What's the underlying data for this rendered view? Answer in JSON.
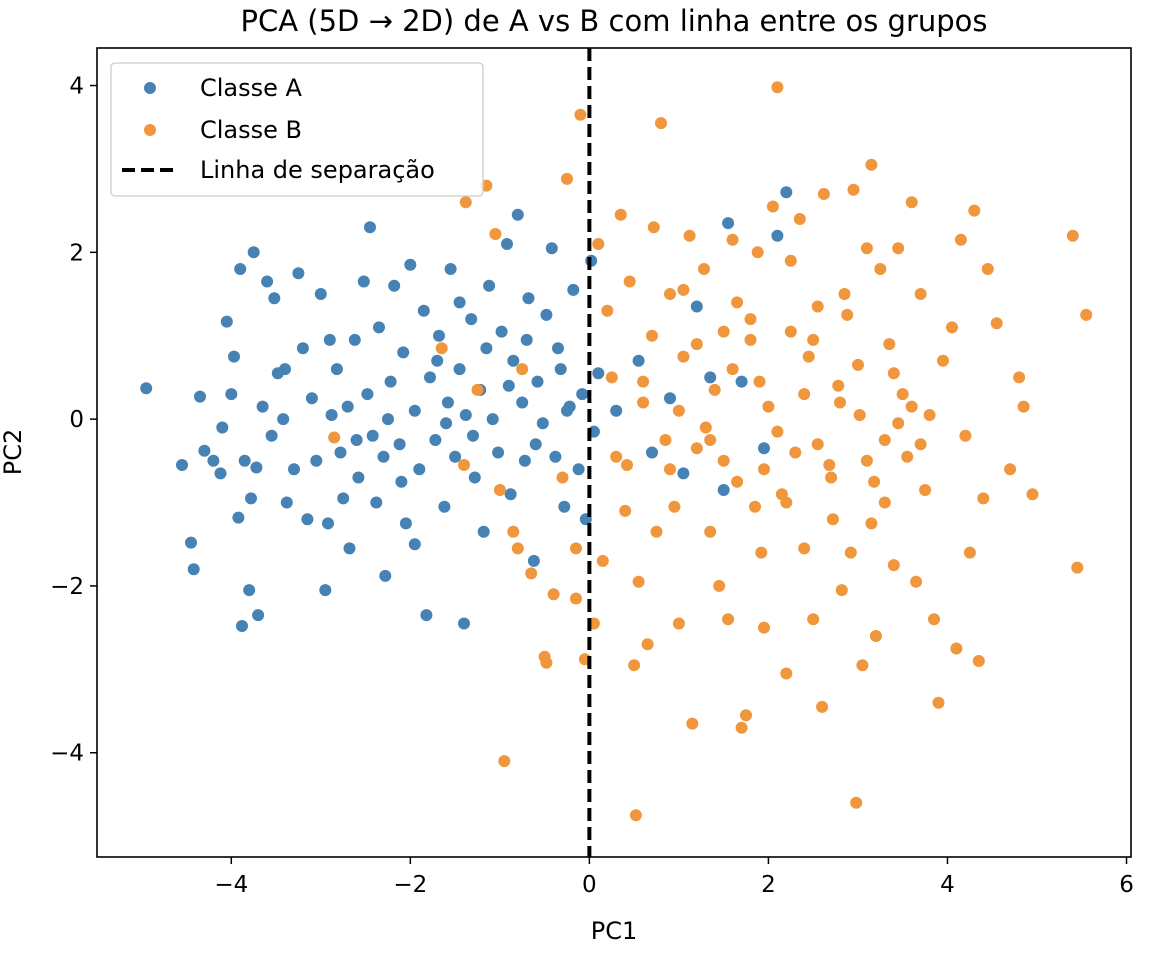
{
  "chart_data": {
    "type": "scatter",
    "title": "PCA (5D → 2D) de A vs B com linha entre os grupos",
    "xlabel": "PC1",
    "ylabel": "PC2",
    "xlim": [
      -5.5,
      6.05
    ],
    "ylim": [
      -5.25,
      4.45
    ],
    "xticks": [
      -4,
      -2,
      0,
      2,
      4,
      6
    ],
    "yticks": [
      -4,
      -2,
      0,
      2,
      4
    ],
    "grid": false,
    "legend_position": "top-left",
    "separator": {
      "name": "Linha de separação",
      "x": 0,
      "style": "dashed",
      "color": "#000000"
    },
    "series": [
      {
        "name": "Classe A",
        "color": "#4682b4",
        "points": [
          [
            -4.95,
            0.37
          ],
          [
            -4.55,
            -0.55
          ],
          [
            -4.45,
            -1.48
          ],
          [
            -4.42,
            -1.8
          ],
          [
            -4.35,
            0.27
          ],
          [
            -4.3,
            -0.38
          ],
          [
            -4.2,
            -0.5
          ],
          [
            -4.12,
            -0.65
          ],
          [
            -4.05,
            1.17
          ],
          [
            -4.0,
            0.3
          ],
          [
            -3.97,
            0.75
          ],
          [
            -3.92,
            -1.18
          ],
          [
            -3.9,
            1.8
          ],
          [
            -3.88,
            -2.48
          ],
          [
            -3.85,
            -0.5
          ],
          [
            -3.8,
            -2.05
          ],
          [
            -3.78,
            -0.95
          ],
          [
            -3.75,
            2.0
          ],
          [
            -3.72,
            -0.58
          ],
          [
            -3.7,
            -2.35
          ],
          [
            -3.65,
            0.15
          ],
          [
            -3.6,
            1.65
          ],
          [
            -3.55,
            -0.2
          ],
          [
            -3.52,
            1.45
          ],
          [
            -3.48,
            0.55
          ],
          [
            -3.42,
            0.0
          ],
          [
            -3.38,
            -1.0
          ],
          [
            -3.3,
            -0.6
          ],
          [
            -3.25,
            1.75
          ],
          [
            -3.2,
            0.85
          ],
          [
            -3.15,
            -1.2
          ],
          [
            -3.1,
            0.25
          ],
          [
            -3.05,
            -0.5
          ],
          [
            -3.0,
            1.5
          ],
          [
            -2.95,
            -2.05
          ],
          [
            -2.92,
            -1.25
          ],
          [
            -2.88,
            0.05
          ],
          [
            -2.82,
            0.6
          ],
          [
            -2.78,
            -0.4
          ],
          [
            -2.7,
            0.15
          ],
          [
            -2.68,
            -1.55
          ],
          [
            -2.62,
            0.95
          ],
          [
            -2.58,
            -0.7
          ],
          [
            -2.52,
            1.65
          ],
          [
            -2.48,
            0.3
          ],
          [
            -2.45,
            2.3
          ],
          [
            -2.42,
            -0.2
          ],
          [
            -2.38,
            -1.0
          ],
          [
            -2.35,
            1.1
          ],
          [
            -2.3,
            -0.45
          ],
          [
            -2.28,
            -1.88
          ],
          [
            -2.22,
            0.45
          ],
          [
            -2.18,
            1.6
          ],
          [
            -2.12,
            -0.3
          ],
          [
            -2.08,
            0.8
          ],
          [
            -2.05,
            -1.25
          ],
          [
            -2.0,
            1.85
          ],
          [
            -1.95,
            0.1
          ],
          [
            -1.9,
            -0.6
          ],
          [
            -1.85,
            1.3
          ],
          [
            -1.82,
            -2.35
          ],
          [
            -1.78,
            0.5
          ],
          [
            -1.72,
            -0.25
          ],
          [
            -1.68,
            1.0
          ],
          [
            -1.62,
            -1.05
          ],
          [
            -1.58,
            0.2
          ],
          [
            -1.55,
            1.8
          ],
          [
            -1.5,
            -0.45
          ],
          [
            -1.45,
            0.6
          ],
          [
            -1.4,
            -2.45
          ],
          [
            -1.38,
            0.05
          ],
          [
            -1.32,
            1.2
          ],
          [
            -1.28,
            -0.7
          ],
          [
            -1.22,
            0.35
          ],
          [
            -1.18,
            -1.35
          ],
          [
            -1.12,
            1.6
          ],
          [
            -1.08,
            0.0
          ],
          [
            -1.02,
            -0.4
          ],
          [
            -0.98,
            1.05
          ],
          [
            -0.92,
            2.1
          ],
          [
            -0.88,
            -0.9
          ],
          [
            -0.85,
            0.7
          ],
          [
            -0.8,
            2.45
          ],
          [
            -0.75,
            0.2
          ],
          [
            -0.72,
            -0.5
          ],
          [
            -0.68,
            1.45
          ],
          [
            -0.62,
            -1.7
          ],
          [
            -0.58,
            0.45
          ],
          [
            -0.52,
            -0.05
          ],
          [
            -0.48,
            1.25
          ],
          [
            -0.42,
            2.05
          ],
          [
            -0.38,
            -0.45
          ],
          [
            -0.32,
            0.6
          ],
          [
            -0.28,
            -1.05
          ],
          [
            -0.22,
            0.15
          ],
          [
            -0.18,
            1.55
          ],
          [
            -0.12,
            -0.6
          ],
          [
            -0.08,
            0.3
          ],
          [
            -0.04,
            -1.2
          ],
          [
            0.02,
            1.9
          ],
          [
            0.05,
            -0.15
          ],
          [
            0.1,
            0.55
          ],
          [
            0.3,
            0.1
          ],
          [
            0.55,
            0.7
          ],
          [
            0.7,
            -0.4
          ],
          [
            0.9,
            0.25
          ],
          [
            1.05,
            -0.65
          ],
          [
            1.2,
            1.35
          ],
          [
            1.35,
            0.5
          ],
          [
            1.5,
            -0.85
          ],
          [
            1.55,
            2.35
          ],
          [
            1.7,
            0.45
          ],
          [
            1.95,
            -0.35
          ],
          [
            2.1,
            2.2
          ],
          [
            2.2,
            2.72
          ],
          [
            -2.9,
            0.95
          ],
          [
            -2.6,
            -0.25
          ],
          [
            -2.1,
            -0.75
          ],
          [
            -1.7,
            0.7
          ],
          [
            -1.3,
            -0.2
          ],
          [
            -0.9,
            0.4
          ],
          [
            -0.6,
            -0.3
          ],
          [
            -0.35,
            0.85
          ],
          [
            -1.95,
            -1.5
          ],
          [
            -1.45,
            1.4
          ],
          [
            -3.4,
            0.6
          ],
          [
            -4.1,
            -0.1
          ],
          [
            -2.75,
            -0.95
          ],
          [
            -2.25,
            0.0
          ],
          [
            -1.6,
            -0.05
          ],
          [
            -1.15,
            0.85
          ],
          [
            -0.7,
            0.95
          ],
          [
            -0.25,
            0.1
          ]
        ]
      },
      {
        "name": "Classe B",
        "color": "#f0963c",
        "points": [
          [
            -2.85,
            -0.22
          ],
          [
            -1.65,
            0.85
          ],
          [
            -1.4,
            -0.55
          ],
          [
            -1.38,
            2.6
          ],
          [
            -1.25,
            0.35
          ],
          [
            -1.15,
            2.8
          ],
          [
            -1.05,
            2.22
          ],
          [
            -1.0,
            -0.85
          ],
          [
            -0.95,
            -4.1
          ],
          [
            -0.85,
            -1.35
          ],
          [
            -0.8,
            -1.55
          ],
          [
            -0.75,
            0.6
          ],
          [
            -0.65,
            -1.85
          ],
          [
            -0.5,
            -2.85
          ],
          [
            -0.48,
            -2.92
          ],
          [
            -0.4,
            -2.1
          ],
          [
            -0.3,
            -0.7
          ],
          [
            -0.25,
            2.88
          ],
          [
            -0.15,
            -2.15
          ],
          [
            -0.15,
            -1.55
          ],
          [
            -0.1,
            3.65
          ],
          [
            -0.05,
            -2.88
          ],
          [
            0.05,
            -2.45
          ],
          [
            0.1,
            2.1
          ],
          [
            0.15,
            -1.7
          ],
          [
            0.25,
            0.5
          ],
          [
            0.35,
            2.45
          ],
          [
            0.42,
            -0.55
          ],
          [
            0.5,
            -2.95
          ],
          [
            0.52,
            -4.75
          ],
          [
            0.55,
            -1.95
          ],
          [
            0.6,
            0.2
          ],
          [
            0.65,
            -2.7
          ],
          [
            0.72,
            2.3
          ],
          [
            0.8,
            3.55
          ],
          [
            0.85,
            -0.25
          ],
          [
            0.9,
            1.5
          ],
          [
            0.95,
            -1.05
          ],
          [
            1.0,
            -2.45
          ],
          [
            1.05,
            0.75
          ],
          [
            1.12,
            2.2
          ],
          [
            1.15,
            -3.65
          ],
          [
            1.2,
            -0.35
          ],
          [
            1.28,
            1.8
          ],
          [
            1.35,
            -1.35
          ],
          [
            1.4,
            0.35
          ],
          [
            1.45,
            -2.0
          ],
          [
            1.5,
            1.05
          ],
          [
            1.55,
            -2.4
          ],
          [
            1.6,
            2.15
          ],
          [
            1.65,
            -0.75
          ],
          [
            1.7,
            -3.7
          ],
          [
            1.75,
            -3.55
          ],
          [
            1.8,
            0.95
          ],
          [
            1.85,
            -1.05
          ],
          [
            1.88,
            2.0
          ],
          [
            1.92,
            -1.6
          ],
          [
            1.95,
            -2.5
          ],
          [
            2.0,
            0.15
          ],
          [
            2.05,
            2.55
          ],
          [
            2.1,
            3.98
          ],
          [
            2.15,
            -0.9
          ],
          [
            2.2,
            -3.05
          ],
          [
            2.25,
            1.9
          ],
          [
            2.3,
            -0.4
          ],
          [
            2.35,
            2.4
          ],
          [
            2.4,
            -1.55
          ],
          [
            2.45,
            0.75
          ],
          [
            2.5,
            -2.4
          ],
          [
            2.55,
            1.35
          ],
          [
            2.6,
            -3.45
          ],
          [
            2.62,
            2.7
          ],
          [
            2.68,
            -0.55
          ],
          [
            2.72,
            -1.2
          ],
          [
            2.78,
            0.4
          ],
          [
            2.82,
            -2.05
          ],
          [
            2.88,
            1.25
          ],
          [
            2.92,
            -1.6
          ],
          [
            2.95,
            2.75
          ],
          [
            2.98,
            -4.6
          ],
          [
            3.02,
            0.05
          ],
          [
            3.05,
            -2.95
          ],
          [
            3.1,
            2.05
          ],
          [
            3.15,
            3.05
          ],
          [
            3.18,
            -0.75
          ],
          [
            3.2,
            -2.6
          ],
          [
            3.25,
            1.8
          ],
          [
            3.3,
            -0.25
          ],
          [
            3.35,
            0.9
          ],
          [
            3.4,
            -1.75
          ],
          [
            3.45,
            2.05
          ],
          [
            3.5,
            0.3
          ],
          [
            3.55,
            -0.45
          ],
          [
            3.6,
            2.6
          ],
          [
            3.65,
            -1.95
          ],
          [
            3.7,
            1.5
          ],
          [
            3.75,
            -0.85
          ],
          [
            3.8,
            0.05
          ],
          [
            3.85,
            -2.4
          ],
          [
            3.9,
            -3.4
          ],
          [
            3.95,
            0.7
          ],
          [
            4.05,
            1.1
          ],
          [
            4.1,
            -2.75
          ],
          [
            4.15,
            2.15
          ],
          [
            4.2,
            -0.2
          ],
          [
            4.25,
            -1.6
          ],
          [
            4.3,
            2.5
          ],
          [
            4.35,
            -2.9
          ],
          [
            4.4,
            -0.95
          ],
          [
            4.45,
            1.8
          ],
          [
            4.55,
            1.15
          ],
          [
            4.7,
            -0.6
          ],
          [
            4.8,
            0.5
          ],
          [
            4.85,
            0.15
          ],
          [
            4.95,
            -0.9
          ],
          [
            5.4,
            2.2
          ],
          [
            5.45,
            -1.78
          ],
          [
            5.55,
            1.25
          ],
          [
            0.2,
            1.3
          ],
          [
            0.4,
            -1.1
          ],
          [
            0.7,
            1.0
          ],
          [
            1.0,
            0.1
          ],
          [
            1.3,
            -0.1
          ],
          [
            1.6,
            0.6
          ],
          [
            1.9,
            0.45
          ],
          [
            2.2,
            -1.0
          ],
          [
            2.5,
            0.95
          ],
          [
            2.8,
            0.2
          ],
          [
            3.1,
            -0.5
          ],
          [
            3.4,
            0.55
          ],
          [
            3.7,
            -0.3
          ],
          [
            0.3,
            -0.45
          ],
          [
            0.6,
            0.45
          ],
          [
            0.9,
            -0.6
          ],
          [
            1.2,
            0.9
          ],
          [
            1.5,
            -0.5
          ],
          [
            1.8,
            1.2
          ],
          [
            2.1,
            -0.15
          ],
          [
            2.4,
            0.3
          ],
          [
            2.7,
            -0.7
          ],
          [
            3.0,
            0.65
          ],
          [
            3.3,
            -1.0
          ],
          [
            3.6,
            0.15
          ],
          [
            0.45,
            1.65
          ],
          [
            0.75,
            -1.35
          ],
          [
            1.05,
            1.55
          ],
          [
            1.35,
            -0.25
          ],
          [
            1.65,
            1.4
          ],
          [
            1.95,
            -0.6
          ],
          [
            2.25,
            1.05
          ],
          [
            2.55,
            -0.3
          ],
          [
            2.85,
            1.5
          ],
          [
            3.15,
            -1.25
          ],
          [
            3.45,
            -0.05
          ]
        ]
      }
    ]
  }
}
